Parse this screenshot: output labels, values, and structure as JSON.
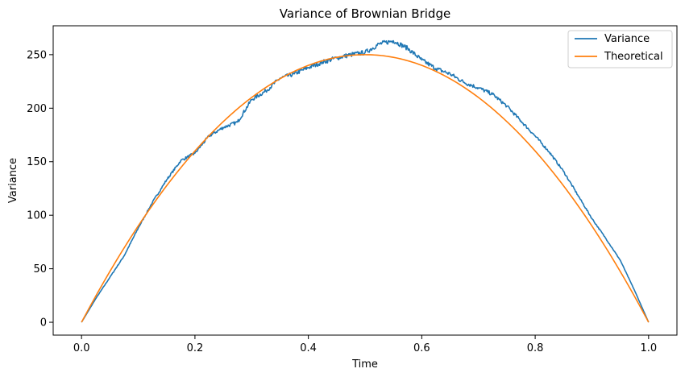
{
  "chart_data": {
    "type": "line",
    "title": "Variance of Brownian Bridge",
    "xlabel": "Time",
    "ylabel": "Variance",
    "xlim": [
      -0.05,
      1.05
    ],
    "ylim": [
      -12,
      277
    ],
    "x_ticks": [
      0.0,
      0.2,
      0.4,
      0.6,
      0.8,
      1.0
    ],
    "x_tick_labels": [
      "0.0",
      "0.2",
      "0.4",
      "0.6",
      "0.8",
      "1.0"
    ],
    "y_ticks": [
      0,
      50,
      100,
      150,
      200,
      250
    ],
    "y_tick_labels": [
      "0",
      "50",
      "100",
      "150",
      "200",
      "250"
    ],
    "grid": false,
    "legend": {
      "position": "top-right"
    },
    "series": [
      {
        "name": "Variance",
        "color": "#1f77b4",
        "x": [
          0.0,
          0.025,
          0.05,
          0.075,
          0.1,
          0.125,
          0.15,
          0.175,
          0.2,
          0.225,
          0.25,
          0.275,
          0.3,
          0.325,
          0.35,
          0.375,
          0.4,
          0.425,
          0.45,
          0.475,
          0.5,
          0.525,
          0.55,
          0.575,
          0.6,
          0.625,
          0.65,
          0.675,
          0.7,
          0.725,
          0.75,
          0.775,
          0.8,
          0.825,
          0.85,
          0.875,
          0.9,
          0.925,
          0.95,
          0.975,
          1.0
        ],
        "values": [
          0,
          22,
          42,
          62,
          88,
          112,
          133,
          151,
          158,
          174,
          182,
          187,
          208,
          216,
          228,
          232,
          238,
          243,
          247,
          250,
          252,
          260,
          263,
          256,
          245,
          237,
          232,
          224,
          219,
          213,
          202,
          188,
          174,
          159,
          141,
          119,
          97,
          78,
          58,
          30,
          0
        ]
      },
      {
        "name": "Theoretical",
        "color": "#ff7f0e",
        "function": "1000*t*(1-t)",
        "x": [
          0.0,
          0.025,
          0.05,
          0.075,
          0.1,
          0.125,
          0.15,
          0.175,
          0.2,
          0.225,
          0.25,
          0.275,
          0.3,
          0.325,
          0.35,
          0.375,
          0.4,
          0.425,
          0.45,
          0.475,
          0.5,
          0.525,
          0.55,
          0.575,
          0.6,
          0.625,
          0.65,
          0.675,
          0.7,
          0.725,
          0.75,
          0.775,
          0.8,
          0.825,
          0.85,
          0.875,
          0.9,
          0.925,
          0.95,
          0.975,
          1.0
        ],
        "values": [
          0,
          24.4,
          47.5,
          69.4,
          90,
          109.4,
          127.5,
          144.4,
          160,
          174.4,
          187.5,
          199.4,
          210,
          219.4,
          227.5,
          234.4,
          240,
          244.4,
          247.5,
          249.4,
          250,
          249.4,
          247.5,
          244.4,
          240,
          234.4,
          227.5,
          219.4,
          210,
          199.4,
          187.5,
          174.4,
          160,
          144.4,
          127.5,
          109.4,
          90,
          69.4,
          47.5,
          24.4,
          0
        ]
      }
    ]
  }
}
